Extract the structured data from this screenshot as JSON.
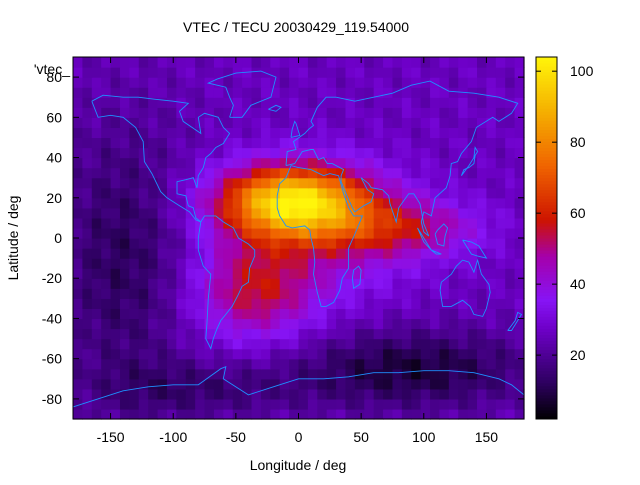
{
  "chart_data": {
    "type": "heatmap",
    "title": "VTEC / TECU 20030429_119.54000",
    "key_label": "'vtec_",
    "xlabel": "Longitude / deg",
    "ylabel": "Latitude / deg",
    "xlim": [
      -180,
      180
    ],
    "ylim": [
      -90,
      90
    ],
    "x_ticks": [
      -150,
      -100,
      -50,
      0,
      50,
      100,
      150
    ],
    "y_ticks": [
      80,
      60,
      40,
      20,
      0,
      -20,
      -40,
      -60,
      -80
    ],
    "colorbar": {
      "min": 2,
      "max": 104,
      "ticks": [
        20,
        40,
        60,
        80,
        100
      ]
    },
    "grid": false,
    "peak": {
      "lon": -5,
      "lat": 18,
      "value": 100
    },
    "colors": {
      "coastline": "#1e90ff",
      "frame": "#000000",
      "background": "#ffffff"
    }
  }
}
